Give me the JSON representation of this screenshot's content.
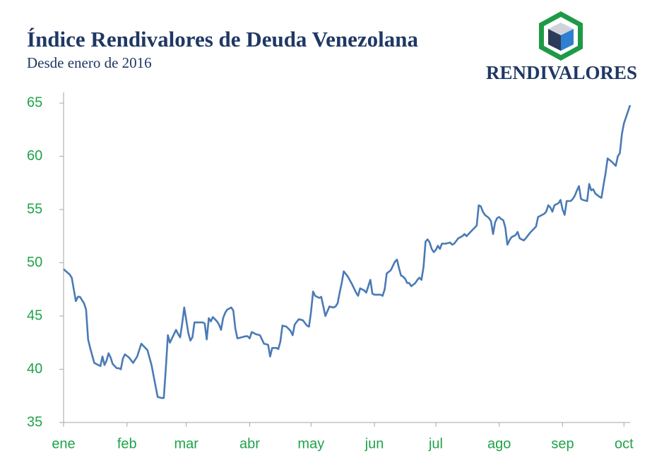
{
  "chart_data": {
    "type": "line",
    "title": "Índice Rendivalores de Deuda Venezolana",
    "subtitle": "Desde enero de 2016",
    "color": "#4a7ab5",
    "x": [
      0,
      3,
      4,
      5,
      6,
      7,
      8,
      10,
      11,
      12,
      13,
      14,
      15,
      17,
      18,
      19,
      20,
      21,
      22,
      23,
      24,
      26,
      27,
      28,
      29,
      30,
      32,
      34,
      36,
      38,
      40,
      41,
      43,
      44,
      45,
      46,
      48,
      49,
      50,
      51,
      52,
      53,
      55,
      56,
      57,
      58,
      59,
      60,
      61,
      62,
      63,
      64,
      66,
      68,
      69,
      70,
      71,
      72,
      73,
      75,
      76,
      77,
      78,
      79,
      80,
      82,
      83,
      84,
      85,
      87,
      89,
      90,
      91,
      92,
      94,
      96,
      98,
      100,
      101,
      102,
      104,
      105,
      106,
      107,
      109,
      111,
      112,
      113,
      115,
      117,
      119,
      120,
      121,
      122,
      123,
      125,
      126,
      127,
      128,
      130,
      132,
      133,
      134,
      135,
      136,
      137,
      139,
      141,
      143,
      144,
      145,
      147,
      148,
      149,
      150,
      151,
      152,
      155,
      156,
      157,
      158,
      160,
      161,
      162,
      163,
      164,
      165,
      166,
      167,
      168,
      169,
      170,
      172,
      173,
      174,
      175,
      176,
      177,
      178,
      179,
      180,
      181,
      182,
      183,
      184,
      185,
      187,
      189,
      190,
      191,
      193,
      195,
      196,
      197,
      199,
      201,
      202,
      203,
      204,
      205,
      206,
      208,
      209,
      210,
      211,
      212,
      213,
      214,
      215,
      216,
      217,
      218,
      219,
      221,
      222,
      223,
      224,
      225,
      226,
      228,
      230,
      231,
      232,
      233,
      235,
      236,
      237,
      238,
      239,
      240,
      242,
      243,
      244,
      245,
      246,
      248,
      249,
      250,
      251,
      252,
      253,
      254,
      256,
      257,
      258,
      259,
      260,
      262,
      263,
      264,
      265,
      266,
      268,
      270,
      271,
      272,
      273,
      274,
      277
    ],
    "values": [
      49.4,
      48.9,
      48.6,
      47.5,
      46.4,
      46.8,
      46.8,
      46.2,
      45.6,
      42.8,
      42.0,
      41.3,
      40.6,
      40.4,
      40.3,
      41.2,
      40.4,
      40.8,
      41.5,
      41.1,
      40.5,
      40.1,
      40.1,
      40.0,
      41.0,
      41.4,
      41.1,
      40.6,
      41.2,
      42.4,
      42.0,
      41.8,
      40.4,
      39.4,
      38.4,
      37.4,
      37.3,
      37.3,
      40.1,
      43.2,
      42.5,
      42.9,
      43.7,
      43.3,
      43.0,
      44.3,
      45.8,
      44.6,
      43.4,
      42.7,
      43.0,
      44.4,
      44.4,
      44.4,
      44.3,
      42.8,
      44.8,
      44.5,
      44.9,
      44.5,
      44.2,
      43.7,
      44.8,
      45.3,
      45.6,
      45.8,
      45.5,
      43.8,
      42.9,
      43.0,
      43.1,
      43.1,
      42.9,
      43.5,
      43.3,
      43.2,
      42.4,
      42.3,
      41.2,
      42.0,
      42.0,
      41.9,
      42.6,
      44.1,
      44.0,
      43.6,
      43.2,
      44.2,
      44.7,
      44.6,
      44.1,
      44.0,
      45.4,
      47.3,
      46.9,
      46.7,
      46.8,
      45.9,
      45.0,
      45.9,
      45.8,
      45.9,
      46.2,
      47.2,
      48.1,
      49.2,
      48.7,
      48.0,
      47.2,
      46.9,
      47.6,
      47.4,
      47.2,
      47.8,
      48.4,
      47.1,
      47.0,
      47.0,
      46.9,
      47.5,
      49.0,
      49.3,
      49.7,
      50.1,
      50.3,
      49.5,
      48.8,
      48.7,
      48.5,
      48.1,
      48.1,
      47.8,
      48.1,
      48.4,
      48.6,
      48.4,
      49.6,
      52.0,
      52.2,
      51.9,
      51.3,
      51.0,
      51.2,
      51.6,
      51.3,
      51.8,
      51.8,
      51.9,
      51.7,
      51.8,
      52.3,
      52.5,
      52.7,
      52.5,
      52.9,
      53.3,
      53.5,
      55.4,
      55.3,
      54.8,
      54.5,
      54.2,
      53.9,
      52.7,
      53.8,
      54.2,
      54.3,
      54.1,
      54.0,
      53.3,
      51.7,
      52.1,
      52.4,
      52.6,
      52.9,
      52.3,
      52.2,
      52.1,
      52.3,
      52.8,
      53.2,
      53.4,
      54.3,
      54.4,
      54.6,
      54.8,
      55.4,
      55.2,
      54.8,
      55.4,
      55.6,
      55.9,
      55.0,
      54.5,
      55.8,
      55.8,
      56.0,
      56.3,
      56.8,
      57.2,
      56.0,
      55.9,
      55.8,
      57.4,
      56.8,
      56.9,
      56.5,
      56.2,
      56.1,
      57.3,
      58.4,
      59.8,
      59.5,
      59.1,
      60.0,
      60.3,
      62.1,
      63.1,
      64.8
    ],
    "xlim": [
      0,
      277
    ],
    "xticks": [
      {
        "value": 0,
        "label": "ene"
      },
      {
        "value": 31,
        "label": "feb"
      },
      {
        "value": 60,
        "label": "mar"
      },
      {
        "value": 91,
        "label": "abr"
      },
      {
        "value": 121,
        "label": "may"
      },
      {
        "value": 152,
        "label": "jun"
      },
      {
        "value": 182,
        "label": "jul"
      },
      {
        "value": 213,
        "label": "ago"
      },
      {
        "value": 244,
        "label": "sep"
      },
      {
        "value": 274,
        "label": "oct"
      }
    ],
    "ylim": [
      35,
      66
    ],
    "yticks": [
      35,
      40,
      45,
      50,
      55,
      60,
      65
    ],
    "grid": false
  },
  "logo_text": "RENDIVALORES"
}
